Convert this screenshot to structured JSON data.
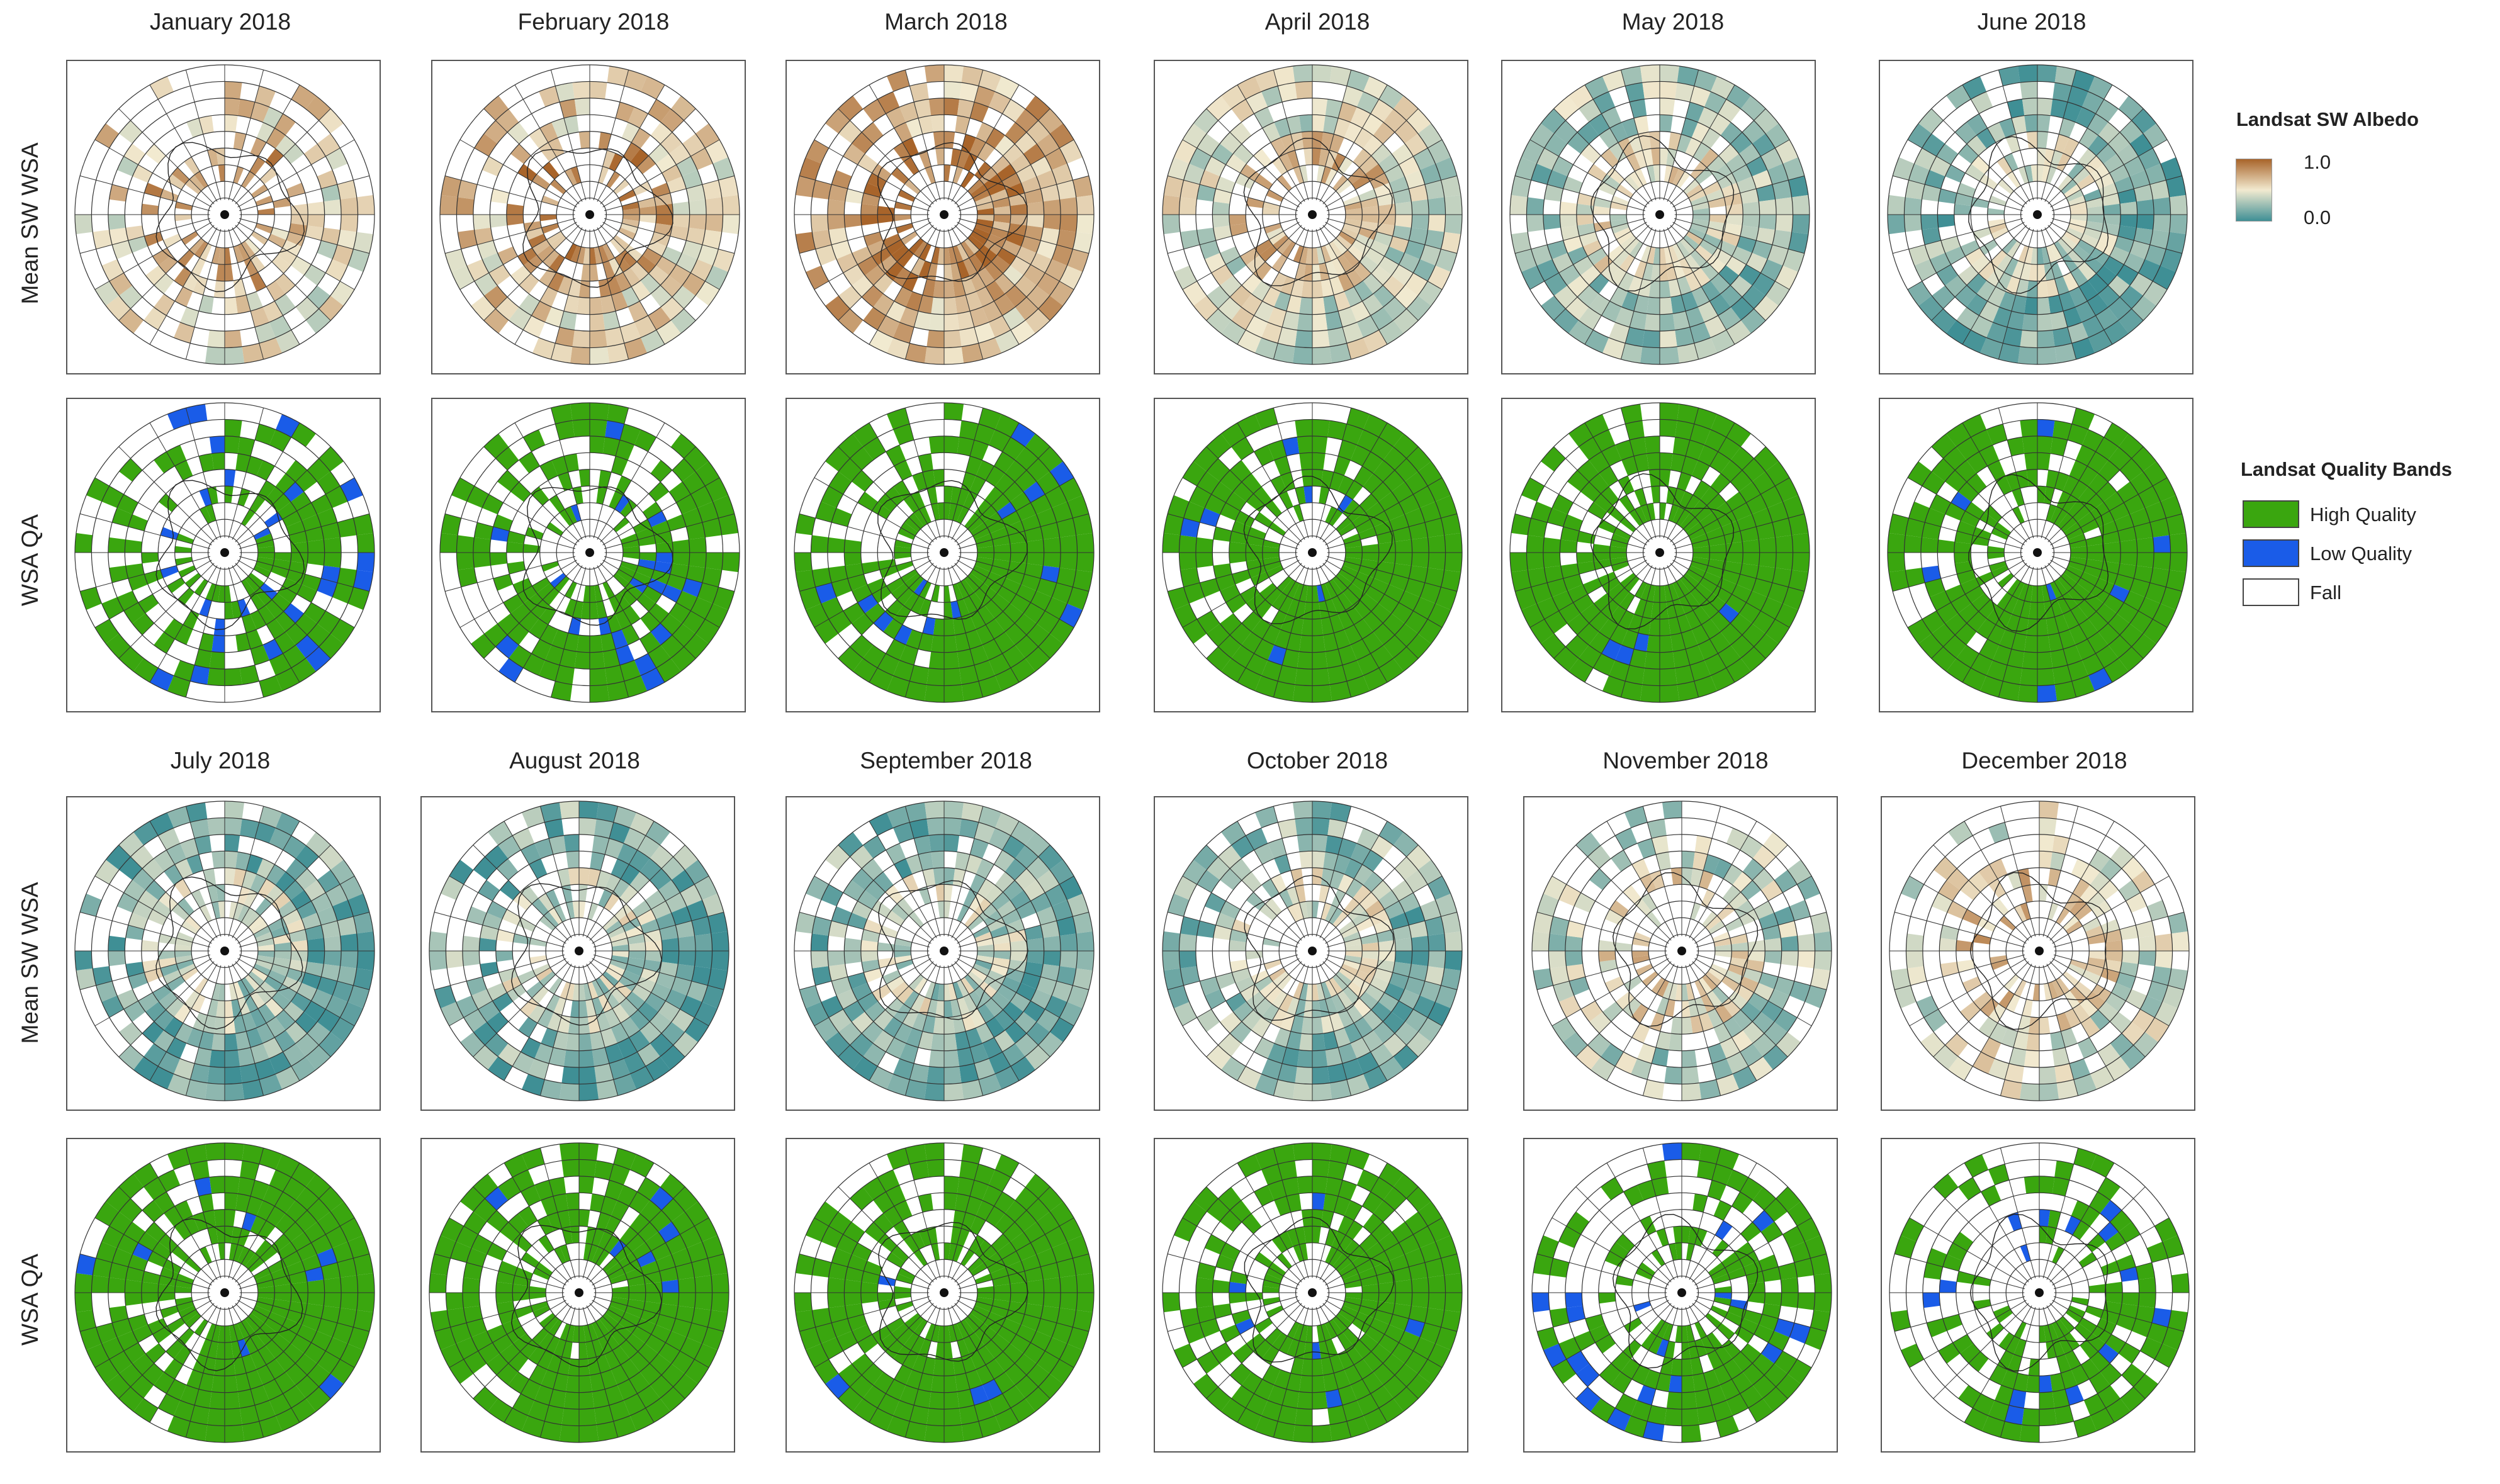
{
  "row_labels": {
    "albedo": "Mean SW WSA",
    "qa": "WSA QA"
  },
  "months": [
    {
      "title": "January 2018",
      "albedo_coverage": 0.5,
      "albedo_level": 0.55,
      "qa_coverage": 0.52,
      "qa_low_quality": 0.14
    },
    {
      "title": "February 2018",
      "albedo_coverage": 0.62,
      "albedo_level": 0.6,
      "qa_coverage": 0.64,
      "qa_low_quality": 0.11
    },
    {
      "title": "March 2018",
      "albedo_coverage": 0.82,
      "albedo_level": 0.7,
      "qa_coverage": 0.84,
      "qa_low_quality": 0.04
    },
    {
      "title": "April 2018",
      "albedo_coverage": 0.88,
      "albedo_level": 0.45,
      "qa_coverage": 0.9,
      "qa_low_quality": 0.02
    },
    {
      "title": "May 2018",
      "albedo_coverage": 0.88,
      "albedo_level": 0.3,
      "qa_coverage": 0.9,
      "qa_low_quality": 0.02
    },
    {
      "title": "June 2018",
      "albedo_coverage": 0.86,
      "albedo_level": 0.2,
      "qa_coverage": 0.88,
      "qa_low_quality": 0.02
    },
    {
      "title": "July  2018",
      "albedo_coverage": 0.86,
      "albedo_level": 0.18,
      "qa_coverage": 0.88,
      "qa_low_quality": 0.02
    },
    {
      "title": "August 2018",
      "albedo_coverage": 0.86,
      "albedo_level": 0.2,
      "qa_coverage": 0.88,
      "qa_low_quality": 0.02
    },
    {
      "title": "September 2018",
      "albedo_coverage": 0.85,
      "albedo_level": 0.2,
      "qa_coverage": 0.86,
      "qa_low_quality": 0.03
    },
    {
      "title": "October 2018",
      "albedo_coverage": 0.8,
      "albedo_level": 0.25,
      "qa_coverage": 0.8,
      "qa_low_quality": 0.04
    },
    {
      "title": "November 2018",
      "albedo_coverage": 0.6,
      "albedo_level": 0.35,
      "qa_coverage": 0.6,
      "qa_low_quality": 0.12
    },
    {
      "title": "December 2018",
      "albedo_coverage": 0.5,
      "albedo_level": 0.45,
      "qa_coverage": 0.5,
      "qa_low_quality": 0.15
    }
  ],
  "legend_albedo": {
    "title": "Landsat SW Albedo",
    "max_label": "1.0",
    "min_label": "0.0",
    "colors": {
      "low": "#3f8f95",
      "mid": "#f2ead0",
      "high": "#a8642a"
    }
  },
  "legend_qa": {
    "title": "Landsat Quality Bands",
    "items": [
      {
        "label": "High Quality",
        "color": "#3aa60f"
      },
      {
        "label": "Low Quality",
        "color": "#1a5ce8"
      },
      {
        "label": "Fall",
        "color": "#ffffff"
      }
    ]
  }
}
